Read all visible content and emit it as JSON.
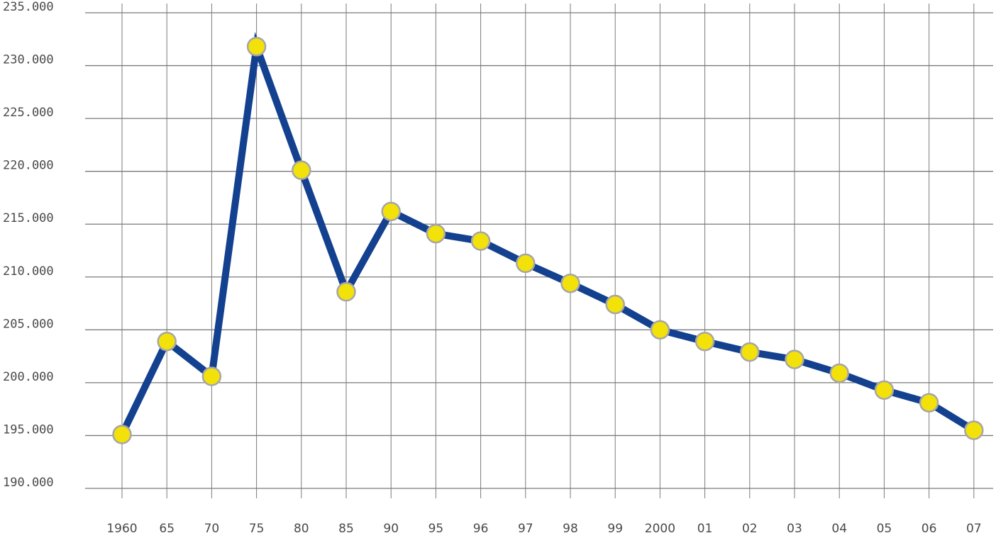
{
  "chart_data": {
    "type": "line",
    "categories": [
      "1960",
      "65",
      "70",
      "75",
      "80",
      "85",
      "90",
      "95",
      "96",
      "97",
      "98",
      "99",
      "2000",
      "01",
      "02",
      "03",
      "04",
      "05",
      "06",
      "07"
    ],
    "series": [
      {
        "values": [
          195100,
          203900,
          200600,
          231800,
          220100,
          208600,
          216200,
          214100,
          213400,
          211300,
          209400,
          207400,
          205000,
          203900,
          202900,
          202200,
          200900,
          199300,
          198100,
          195500
        ]
      }
    ],
    "y_ticks": [
      "190.000",
      "195.000",
      "200.000",
      "205.000",
      "210.000",
      "215.000",
      "220.000",
      "225.000",
      "230.000",
      "235.000"
    ],
    "ylim": [
      190000,
      235000
    ],
    "grid": true,
    "colors": {
      "line": "#13418f",
      "marker_fill": "#f3e10a",
      "marker_stroke": "#a6a6a6",
      "grid": "#7a7a7a",
      "text": "#4a4a4a"
    }
  }
}
